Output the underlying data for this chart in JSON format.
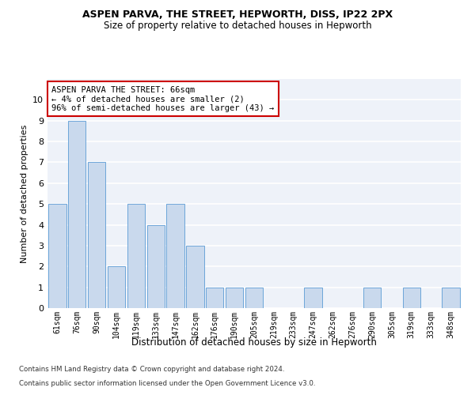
{
  "title": "ASPEN PARVA, THE STREET, HEPWORTH, DISS, IP22 2PX",
  "subtitle": "Size of property relative to detached houses in Hepworth",
  "xlabel": "Distribution of detached houses by size in Hepworth",
  "ylabel": "Number of detached properties",
  "bin_labels": [
    "61sqm",
    "76sqm",
    "90sqm",
    "104sqm",
    "119sqm",
    "133sqm",
    "147sqm",
    "162sqm",
    "176sqm",
    "190sqm",
    "205sqm",
    "219sqm",
    "233sqm",
    "247sqm",
    "262sqm",
    "276sqm",
    "290sqm",
    "305sqm",
    "319sqm",
    "333sqm",
    "348sqm"
  ],
  "bar_values": [
    5,
    9,
    7,
    2,
    5,
    4,
    5,
    3,
    1,
    1,
    1,
    0,
    0,
    1,
    0,
    0,
    1,
    0,
    1,
    0,
    1
  ],
  "bar_color": "#c9d9ed",
  "bar_edge_color": "#5b9bd5",
  "annotation_text": "ASPEN PARVA THE STREET: 66sqm\n← 4% of detached houses are smaller (2)\n96% of semi-detached houses are larger (43) →",
  "annotation_box_color": "#ffffff",
  "annotation_box_edge": "#cc0000",
  "ylim": [
    0,
    11
  ],
  "yticks": [
    0,
    1,
    2,
    3,
    4,
    5,
    6,
    7,
    8,
    9,
    10,
    11
  ],
  "background_color": "#eef2f9",
  "grid_color": "#ffffff",
  "footer_line1": "Contains HM Land Registry data © Crown copyright and database right 2024.",
  "footer_line2": "Contains public sector information licensed under the Open Government Licence v3.0."
}
